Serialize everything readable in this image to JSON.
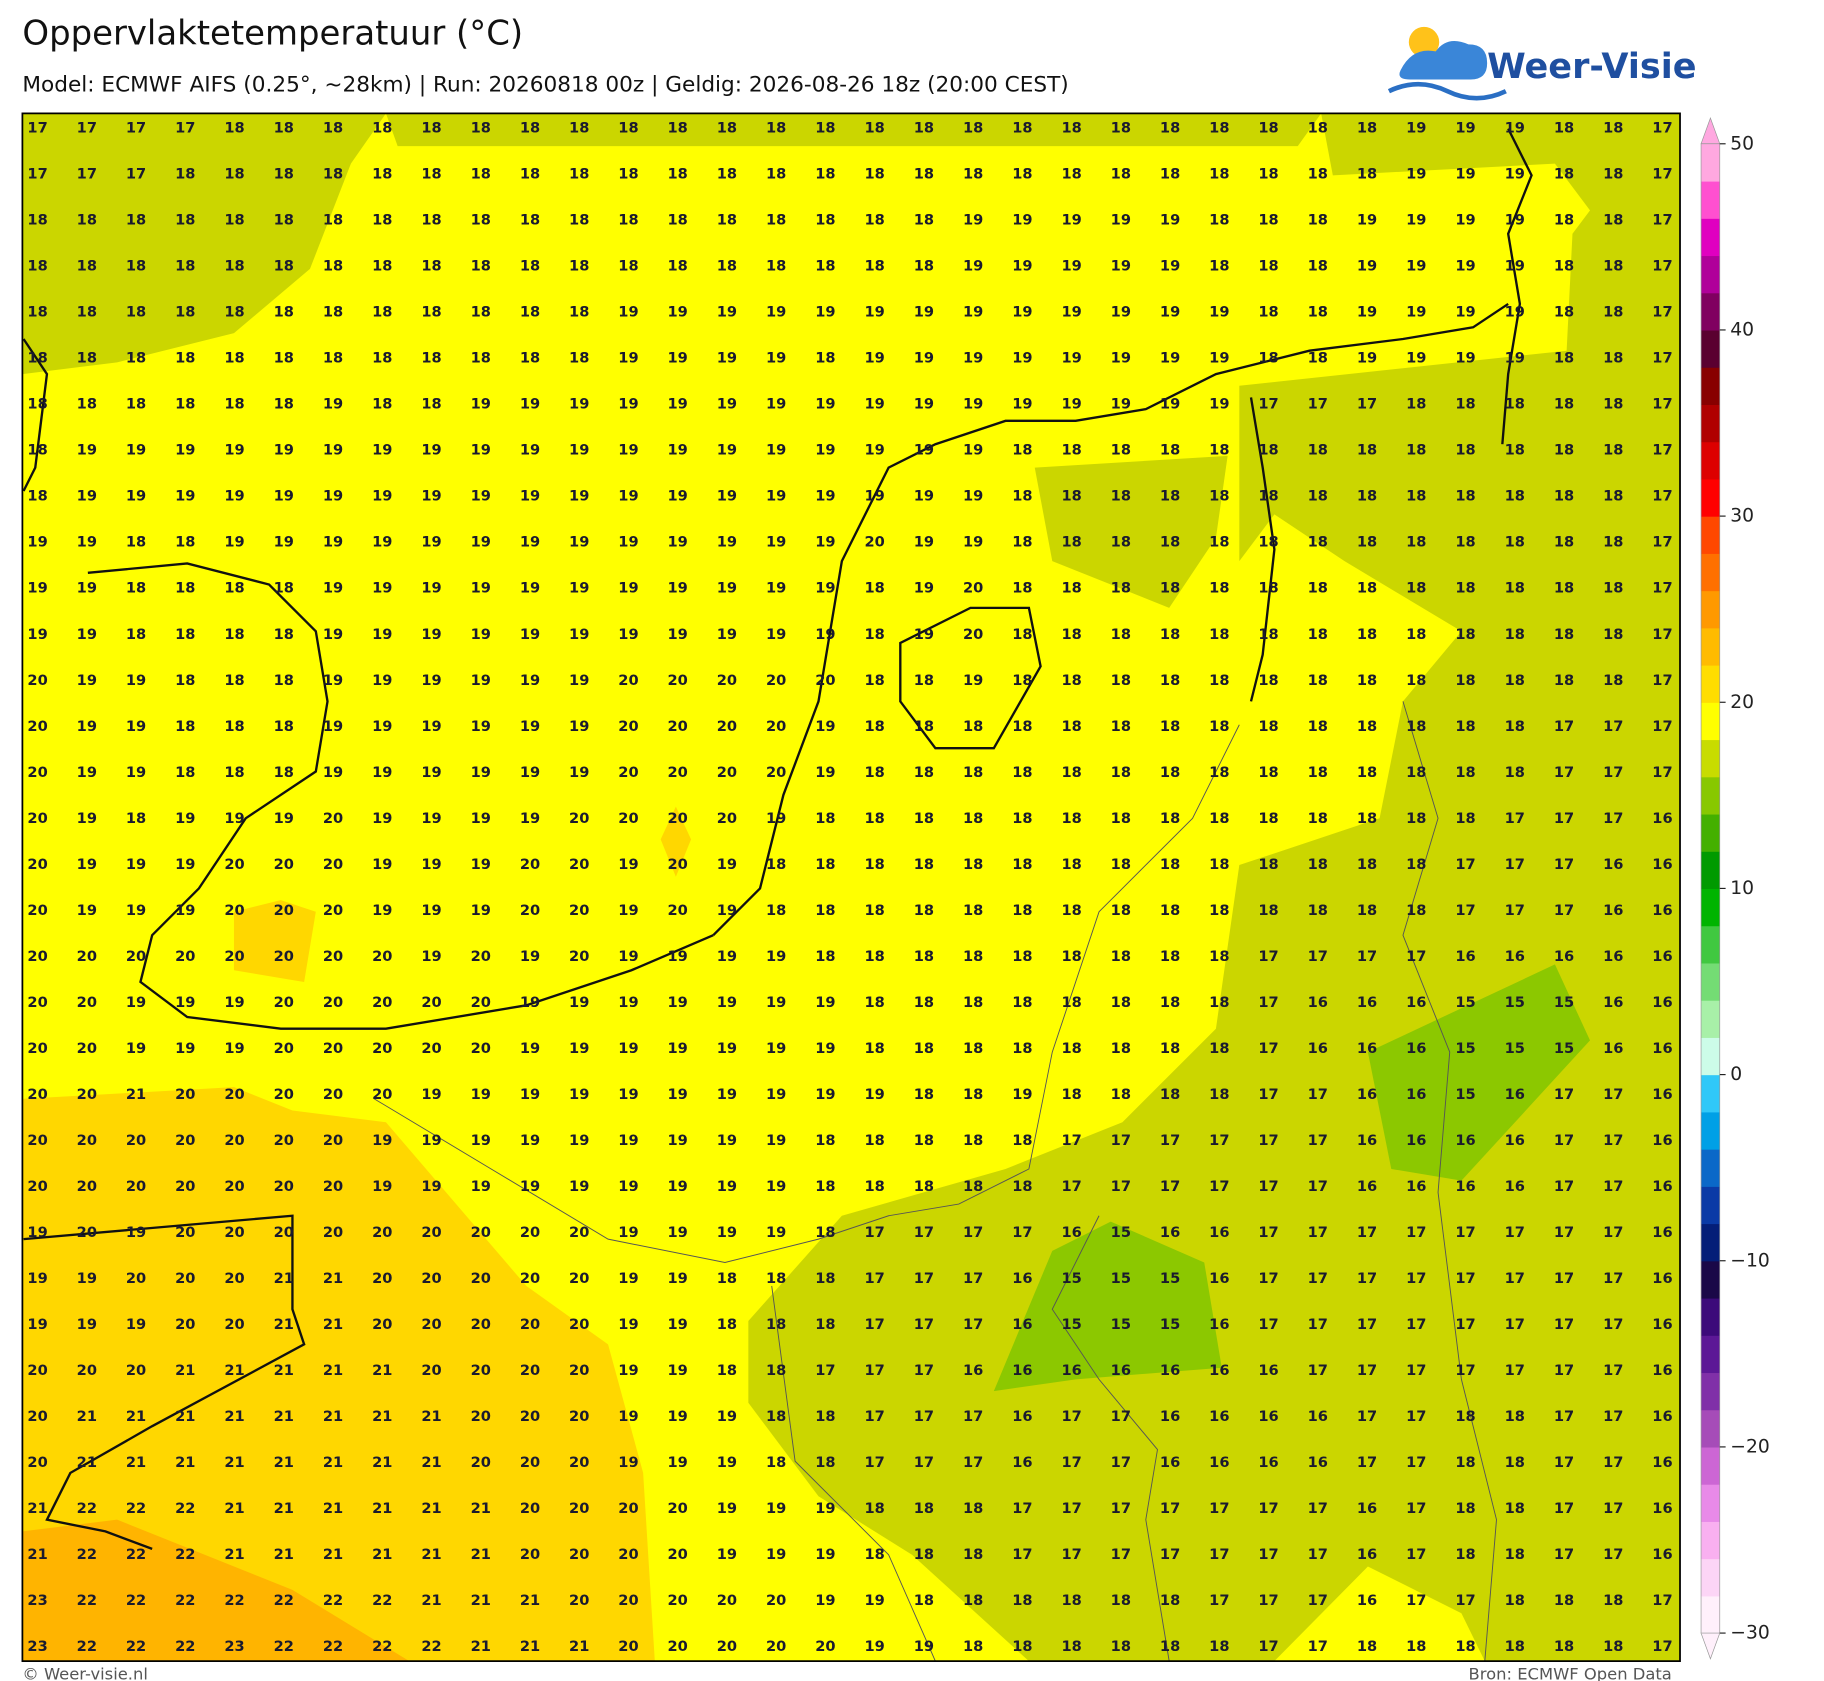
{
  "header": {
    "title": "Oppervlaktetemperatuur (°C)",
    "subtitle": "Model: ECMWF AIFS (0.25°, ~28km)  |  Run: 20260818 00z  |  Geldig: 2026-08-26 18z (20:00 CEST)",
    "logo": "Weer-Visie"
  },
  "map": {
    "grid": [
      [
        17,
        17,
        17,
        17,
        18,
        18,
        18,
        18,
        18,
        18,
        18,
        18,
        18,
        18,
        18,
        18,
        18,
        18,
        18,
        18,
        18,
        18,
        18,
        18,
        18,
        18,
        18,
        18,
        19,
        19,
        19,
        18,
        18,
        17
      ],
      [
        17,
        17,
        17,
        18,
        18,
        18,
        18,
        18,
        18,
        18,
        18,
        18,
        18,
        18,
        18,
        18,
        18,
        18,
        18,
        18,
        18,
        18,
        18,
        18,
        18,
        18,
        18,
        18,
        19,
        19,
        19,
        18,
        18,
        17
      ],
      [
        18,
        18,
        18,
        18,
        18,
        18,
        18,
        18,
        18,
        18,
        18,
        18,
        18,
        18,
        18,
        18,
        18,
        18,
        18,
        19,
        19,
        19,
        19,
        19,
        18,
        18,
        18,
        19,
        19,
        19,
        19,
        18,
        18,
        17
      ],
      [
        18,
        18,
        18,
        18,
        18,
        18,
        18,
        18,
        18,
        18,
        18,
        18,
        18,
        18,
        18,
        18,
        18,
        18,
        18,
        19,
        19,
        19,
        19,
        19,
        18,
        18,
        18,
        19,
        19,
        19,
        19,
        18,
        18,
        17
      ],
      [
        18,
        18,
        18,
        18,
        18,
        18,
        18,
        18,
        18,
        18,
        18,
        18,
        19,
        19,
        19,
        19,
        19,
        19,
        19,
        19,
        19,
        19,
        19,
        19,
        19,
        18,
        18,
        19,
        19,
        19,
        19,
        18,
        18,
        17
      ],
      [
        18,
        18,
        18,
        18,
        18,
        18,
        18,
        18,
        18,
        18,
        18,
        18,
        19,
        19,
        19,
        19,
        18,
        19,
        19,
        19,
        19,
        19,
        19,
        19,
        19,
        18,
        18,
        19,
        19,
        19,
        19,
        18,
        18,
        17
      ],
      [
        18,
        18,
        18,
        18,
        18,
        18,
        19,
        18,
        18,
        19,
        19,
        19,
        19,
        19,
        19,
        19,
        19,
        19,
        19,
        19,
        19,
        19,
        19,
        19,
        19,
        17,
        17,
        17,
        18,
        18,
        18,
        18,
        18,
        17
      ],
      [
        18,
        19,
        19,
        19,
        19,
        19,
        19,
        19,
        19,
        19,
        19,
        19,
        19,
        19,
        19,
        19,
        19,
        19,
        19,
        19,
        18,
        18,
        18,
        18,
        18,
        18,
        18,
        18,
        18,
        18,
        18,
        18,
        18,
        17
      ],
      [
        18,
        19,
        19,
        19,
        19,
        19,
        19,
        19,
        19,
        19,
        19,
        19,
        19,
        19,
        19,
        19,
        19,
        19,
        19,
        19,
        18,
        18,
        18,
        18,
        18,
        18,
        18,
        18,
        18,
        18,
        18,
        18,
        18,
        17
      ],
      [
        19,
        19,
        18,
        18,
        19,
        19,
        19,
        19,
        19,
        19,
        19,
        19,
        19,
        19,
        19,
        19,
        19,
        20,
        19,
        19,
        18,
        18,
        18,
        18,
        18,
        18,
        18,
        18,
        18,
        18,
        18,
        18,
        18,
        17
      ],
      [
        19,
        19,
        18,
        18,
        18,
        18,
        19,
        19,
        19,
        19,
        19,
        19,
        19,
        19,
        19,
        19,
        19,
        18,
        19,
        20,
        18,
        18,
        18,
        18,
        18,
        18,
        18,
        18,
        18,
        18,
        18,
        18,
        18,
        17
      ],
      [
        19,
        19,
        18,
        18,
        18,
        18,
        19,
        19,
        19,
        19,
        19,
        19,
        19,
        19,
        19,
        19,
        19,
        18,
        19,
        20,
        18,
        18,
        18,
        18,
        18,
        18,
        18,
        18,
        18,
        18,
        18,
        18,
        18,
        17
      ],
      [
        20,
        19,
        19,
        18,
        18,
        18,
        19,
        19,
        19,
        19,
        19,
        19,
        20,
        20,
        20,
        20,
        20,
        18,
        18,
        19,
        18,
        18,
        18,
        18,
        18,
        18,
        18,
        18,
        18,
        18,
        18,
        18,
        18,
        17
      ],
      [
        20,
        19,
        19,
        18,
        18,
        18,
        19,
        19,
        19,
        19,
        19,
        19,
        20,
        20,
        20,
        20,
        19,
        18,
        18,
        18,
        18,
        18,
        18,
        18,
        18,
        18,
        18,
        18,
        18,
        18,
        18,
        17,
        17,
        17
      ],
      [
        20,
        19,
        19,
        18,
        18,
        18,
        19,
        19,
        19,
        19,
        19,
        19,
        20,
        20,
        20,
        20,
        19,
        18,
        18,
        18,
        18,
        18,
        18,
        18,
        18,
        18,
        18,
        18,
        18,
        18,
        18,
        17,
        17,
        17
      ],
      [
        20,
        19,
        18,
        19,
        19,
        19,
        20,
        19,
        19,
        19,
        19,
        20,
        20,
        20,
        20,
        19,
        18,
        18,
        18,
        18,
        18,
        18,
        18,
        18,
        18,
        18,
        18,
        18,
        18,
        18,
        17,
        17,
        17,
        16
      ],
      [
        20,
        19,
        19,
        19,
        20,
        20,
        20,
        19,
        19,
        19,
        20,
        20,
        19,
        20,
        19,
        18,
        18,
        18,
        18,
        18,
        18,
        18,
        18,
        18,
        18,
        18,
        18,
        18,
        18,
        17,
        17,
        17,
        16,
        16
      ],
      [
        20,
        19,
        19,
        19,
        20,
        20,
        20,
        19,
        19,
        19,
        20,
        20,
        19,
        20,
        19,
        18,
        18,
        18,
        18,
        18,
        18,
        18,
        18,
        18,
        18,
        18,
        18,
        18,
        18,
        17,
        17,
        17,
        16,
        16
      ],
      [
        20,
        20,
        20,
        20,
        20,
        20,
        20,
        20,
        19,
        20,
        19,
        20,
        19,
        19,
        19,
        19,
        18,
        18,
        18,
        18,
        18,
        18,
        18,
        18,
        18,
        17,
        17,
        17,
        17,
        16,
        16,
        16,
        16,
        16
      ],
      [
        20,
        20,
        19,
        19,
        19,
        20,
        20,
        20,
        20,
        20,
        19,
        19,
        19,
        19,
        19,
        19,
        19,
        18,
        18,
        18,
        18,
        18,
        18,
        18,
        18,
        17,
        16,
        16,
        16,
        15,
        15,
        15,
        16,
        16
      ],
      [
        20,
        20,
        19,
        19,
        19,
        20,
        20,
        20,
        20,
        20,
        19,
        19,
        19,
        19,
        19,
        19,
        19,
        18,
        18,
        18,
        18,
        18,
        18,
        18,
        18,
        17,
        16,
        16,
        16,
        15,
        15,
        15,
        16,
        16
      ],
      [
        20,
        20,
        21,
        20,
        20,
        20,
        20,
        20,
        19,
        19,
        19,
        19,
        19,
        19,
        19,
        19,
        19,
        19,
        18,
        18,
        19,
        18,
        18,
        18,
        18,
        17,
        17,
        16,
        16,
        15,
        16,
        17,
        17,
        16
      ],
      [
        20,
        20,
        20,
        20,
        20,
        20,
        20,
        19,
        19,
        19,
        19,
        19,
        19,
        19,
        19,
        19,
        18,
        18,
        18,
        18,
        18,
        17,
        17,
        17,
        17,
        17,
        17,
        16,
        16,
        16,
        16,
        17,
        17,
        16
      ],
      [
        20,
        20,
        20,
        20,
        20,
        20,
        20,
        19,
        19,
        19,
        19,
        19,
        19,
        19,
        19,
        19,
        18,
        18,
        18,
        18,
        18,
        17,
        17,
        17,
        17,
        17,
        17,
        16,
        16,
        16,
        16,
        17,
        17,
        16
      ],
      [
        19,
        20,
        19,
        20,
        20,
        20,
        20,
        20,
        20,
        20,
        20,
        20,
        19,
        19,
        19,
        19,
        18,
        17,
        17,
        17,
        17,
        16,
        15,
        16,
        16,
        17,
        17,
        17,
        17,
        17,
        17,
        17,
        17,
        16
      ],
      [
        19,
        19,
        20,
        20,
        20,
        21,
        21,
        20,
        20,
        20,
        20,
        20,
        19,
        19,
        18,
        18,
        18,
        17,
        17,
        17,
        16,
        15,
        15,
        15,
        16,
        17,
        17,
        17,
        17,
        17,
        17,
        17,
        17,
        16
      ],
      [
        19,
        19,
        19,
        20,
        20,
        21,
        21,
        20,
        20,
        20,
        20,
        20,
        19,
        19,
        18,
        18,
        18,
        17,
        17,
        17,
        16,
        15,
        15,
        15,
        16,
        17,
        17,
        17,
        17,
        17,
        17,
        17,
        17,
        16
      ],
      [
        20,
        20,
        20,
        21,
        21,
        21,
        21,
        21,
        20,
        20,
        20,
        20,
        19,
        19,
        18,
        18,
        17,
        17,
        17,
        16,
        16,
        16,
        16,
        16,
        16,
        16,
        17,
        17,
        17,
        17,
        17,
        17,
        17,
        16
      ],
      [
        20,
        21,
        21,
        21,
        21,
        21,
        21,
        21,
        21,
        20,
        20,
        20,
        19,
        19,
        19,
        18,
        18,
        17,
        17,
        17,
        16,
        17,
        17,
        16,
        16,
        16,
        16,
        17,
        17,
        18,
        18,
        17,
        17,
        16
      ],
      [
        20,
        21,
        21,
        21,
        21,
        21,
        21,
        21,
        21,
        20,
        20,
        20,
        19,
        19,
        19,
        18,
        18,
        17,
        17,
        17,
        16,
        17,
        17,
        16,
        16,
        16,
        16,
        17,
        17,
        18,
        18,
        17,
        17,
        16
      ],
      [
        21,
        22,
        22,
        22,
        21,
        21,
        21,
        21,
        21,
        21,
        20,
        20,
        20,
        20,
        19,
        19,
        19,
        18,
        18,
        18,
        17,
        17,
        17,
        17,
        17,
        17,
        17,
        16,
        17,
        18,
        18,
        17,
        17,
        16
      ],
      [
        21,
        22,
        22,
        22,
        21,
        21,
        21,
        21,
        21,
        21,
        20,
        20,
        20,
        20,
        19,
        19,
        19,
        18,
        18,
        18,
        17,
        17,
        17,
        17,
        17,
        17,
        17,
        16,
        17,
        18,
        18,
        17,
        17,
        16
      ],
      [
        23,
        22,
        22,
        22,
        22,
        22,
        22,
        22,
        21,
        21,
        21,
        20,
        20,
        20,
        20,
        20,
        19,
        19,
        18,
        18,
        18,
        18,
        18,
        18,
        17,
        17,
        17,
        16,
        17,
        17,
        18,
        18,
        18,
        17
      ],
      [
        23,
        22,
        22,
        22,
        23,
        22,
        22,
        22,
        22,
        21,
        21,
        21,
        20,
        20,
        20,
        20,
        20,
        19,
        19,
        18,
        18,
        18,
        18,
        18,
        18,
        17,
        17,
        18,
        18,
        18,
        18,
        18,
        18,
        17
      ]
    ]
  },
  "colorbar": {
    "lim": [
      -30,
      50
    ],
    "ticks": [
      -30,
      -20,
      -10,
      0,
      10,
      20,
      30,
      40,
      50
    ],
    "tick_labels": [
      "−30",
      "−20",
      "−10",
      "0",
      "10",
      "20",
      "30",
      "40",
      "50"
    ],
    "colors": [
      "#fff0fb",
      "#fcd5f6",
      "#f9b0f0",
      "#e88ae8",
      "#cc66d4",
      "#a64cb8",
      "#8030a8",
      "#5c1896",
      "#3c0a7a",
      "#1a0848",
      "#041e78",
      "#0a3aa6",
      "#0a68c8",
      "#00a0e6",
      "#30c8f8",
      "#ccfce8",
      "#a8f0a8",
      "#74dc74",
      "#40c840",
      "#00b400",
      "#009a00",
      "#44b000",
      "#88c800",
      "#c8dc00",
      "#ffff00",
      "#ffdd00",
      "#ffbb00",
      "#ff9900",
      "#ff7000",
      "#ff4800",
      "#ff0000",
      "#dd0000",
      "#b00000",
      "#880000",
      "#5a0030",
      "#800060",
      "#b0009a",
      "#e000c0",
      "#ff50d0",
      "#ffa8e0"
    ]
  },
  "footer": {
    "left": "© Weer-visie.nl",
    "right": "Bron: ECMWF Open Data"
  }
}
